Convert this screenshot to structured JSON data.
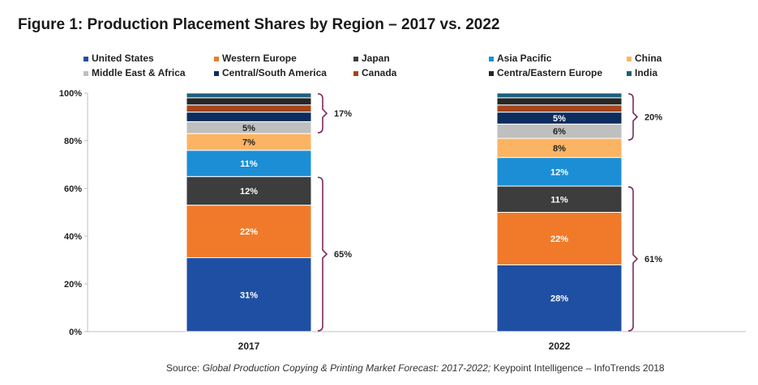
{
  "figure_title": "Figure 1: Production Placement Shares by Region – 2017 vs. 2022",
  "source": {
    "prefix": "Source: ",
    "publication": "Global Production Copying & Printing Market Forecast: 2017-2022;",
    "suffix": " Keypoint Intelligence – InfoTrends 2018"
  },
  "chart_data": {
    "type": "bar",
    "stacked": true,
    "categories": [
      "2017",
      "2022"
    ],
    "ylim": [
      0,
      100
    ],
    "yticks": [
      "0%",
      "20%",
      "40%",
      "60%",
      "80%",
      "100%"
    ],
    "ytick_values": [
      0,
      20,
      40,
      60,
      80,
      100
    ],
    "legend_position": "top",
    "series": [
      {
        "name": "United States",
        "color": "#1f4fa3",
        "values": [
          31,
          28
        ],
        "labels": [
          "31%",
          "28%"
        ]
      },
      {
        "name": "Western Europe",
        "color": "#f07a2a",
        "values": [
          22,
          22
        ],
        "labels": [
          "22%",
          "22%"
        ]
      },
      {
        "name": "Japan",
        "color": "#3d3d3d",
        "values": [
          12,
          11
        ],
        "labels": [
          "12%",
          "11%"
        ]
      },
      {
        "name": "Asia Pacific",
        "color": "#1b8ed6",
        "values": [
          11,
          12
        ],
        "labels": [
          "11%",
          "12%"
        ]
      },
      {
        "name": "China",
        "color": "#fbb463",
        "values": [
          7,
          8
        ],
        "labels": [
          "7%",
          "8%"
        ]
      },
      {
        "name": "Middle East & Africa",
        "color": "#bfbfbf",
        "values": [
          5,
          6
        ],
        "labels": [
          "5%",
          "6%"
        ]
      },
      {
        "name": "Central/South America",
        "color": "#0d2d5e",
        "values": [
          4,
          5
        ],
        "labels": [
          "",
          "5%"
        ]
      },
      {
        "name": "Canada",
        "color": "#a3441b",
        "values": [
          3,
          3
        ],
        "labels": [
          "",
          ""
        ]
      },
      {
        "name": "Centra/Eastern Europe",
        "color": "#262626",
        "values": [
          3,
          3
        ],
        "labels": [
          "",
          ""
        ]
      },
      {
        "name": "India",
        "color": "#1e5f80",
        "values": [
          2,
          2
        ],
        "labels": [
          "",
          ""
        ]
      }
    ],
    "annotations": [
      {
        "category": "2017",
        "from": 0,
        "to": 65,
        "label": "65%"
      },
      {
        "category": "2017",
        "from": 83,
        "to": 100,
        "label": "17%"
      },
      {
        "category": "2022",
        "from": 0,
        "to": 61,
        "label": "61%"
      },
      {
        "category": "2022",
        "from": 80,
        "to": 100,
        "label": "20%"
      }
    ]
  }
}
